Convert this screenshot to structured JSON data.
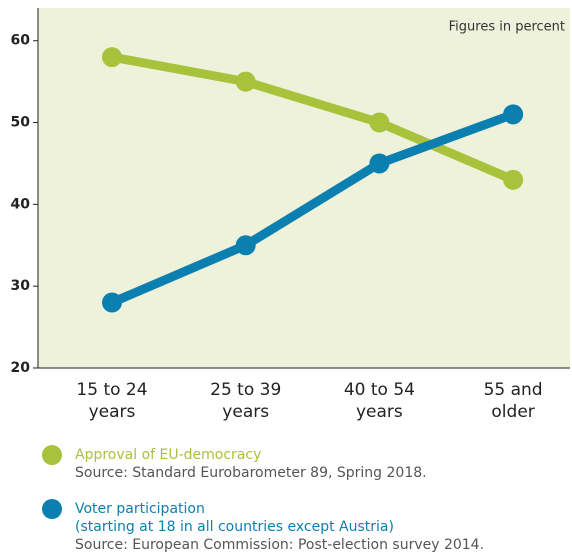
{
  "chart_data": {
    "type": "line",
    "annotation": "Figures in percent",
    "categories": [
      [
        "15 to 24",
        "years"
      ],
      [
        "25 to 39",
        "years"
      ],
      [
        "40 to 54",
        "years"
      ],
      [
        "55 and",
        "older"
      ]
    ],
    "series": [
      {
        "name": "Approval of EU-democracy",
        "color": "#a9c23c",
        "values": [
          58,
          55,
          50,
          43
        ],
        "source": "Source: Standard Eurobarometer 89, Spring 2018."
      },
      {
        "name": "Voter participation",
        "note": "(starting at 18 in all countries except Austria)",
        "color": "#0b7fb0",
        "values": [
          28,
          35,
          45,
          51
        ],
        "source": "Source: European Commission: Post-election survey 2014."
      }
    ],
    "ylim": [
      20,
      64
    ],
    "yticks": [
      20,
      30,
      40,
      50,
      60
    ],
    "background": "#eef2da"
  }
}
